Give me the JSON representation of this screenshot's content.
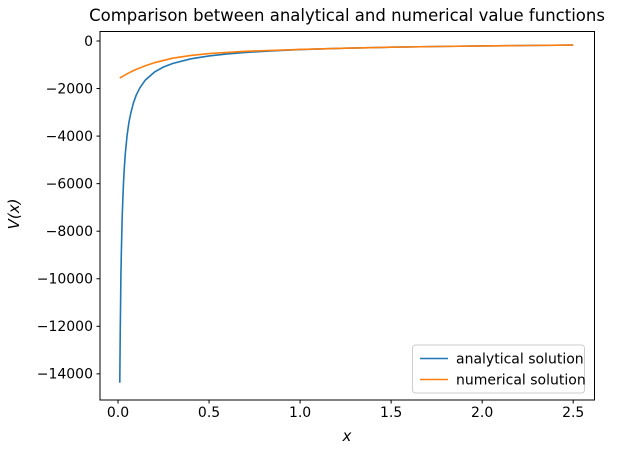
{
  "chart_data": {
    "type": "line",
    "title": "Comparison between analytical and numerical value functions",
    "xlabel": "x",
    "ylabel": "V(x)",
    "grid": false,
    "xlim": [
      -0.099,
      2.617
    ],
    "ylim": [
      -15099,
      399
    ],
    "xticks": [
      {
        "v": 0.0,
        "label": "0.0"
      },
      {
        "v": 0.5,
        "label": "0.5"
      },
      {
        "v": 1.0,
        "label": "1.0"
      },
      {
        "v": 1.5,
        "label": "1.5"
      },
      {
        "v": 2.0,
        "label": "2.0"
      },
      {
        "v": 2.5,
        "label": "2.5"
      }
    ],
    "yticks": [
      {
        "v": 0,
        "label": "0"
      },
      {
        "v": -2000,
        "label": "−2000"
      },
      {
        "v": -4000,
        "label": "−4000"
      },
      {
        "v": -6000,
        "label": "−6000"
      },
      {
        "v": -8000,
        "label": "−8000"
      },
      {
        "v": -10000,
        "label": "−10000"
      },
      {
        "v": -12000,
        "label": "−12000"
      },
      {
        "v": -14000,
        "label": "−14000"
      }
    ],
    "legend": {
      "position": "lower right",
      "border_color": "#cccccc"
    },
    "series": [
      {
        "name": "analytical solution",
        "color": "#1f77b4",
        "x": [
          0.01,
          0.011,
          0.012,
          0.014,
          0.016,
          0.018,
          0.02,
          0.023,
          0.026,
          0.03,
          0.035,
          0.04,
          0.05,
          0.06,
          0.07,
          0.085,
          0.1,
          0.12,
          0.15,
          0.2,
          0.25,
          0.3,
          0.4,
          0.5,
          0.6,
          0.7,
          0.85,
          1.0,
          1.25,
          1.5,
          1.75,
          2.0,
          2.25,
          2.5
        ],
        "y": [
          -14372,
          -13321,
          -12422,
          -10985,
          -9866,
          -8982,
          -8255,
          -7379,
          -6692,
          -5966,
          -5276,
          -4741,
          -3966,
          -3427,
          -3034,
          -2594,
          -2278,
          -1968,
          -1644,
          -1308,
          -1095,
          -946,
          -751,
          -629,
          -543,
          -480,
          -411,
          -361,
          -302,
          -261,
          -231,
          -207,
          -189,
          -173
        ]
      },
      {
        "name": "numerical solution",
        "color": "#ff7f0e",
        "x": [
          0.01,
          0.02,
          0.03,
          0.05,
          0.07,
          0.1,
          0.15,
          0.2,
          0.3,
          0.4,
          0.5,
          0.7,
          1.0,
          1.25,
          1.5,
          1.75,
          2.0,
          2.25,
          2.5
        ],
        "y": [
          -1556,
          -1511,
          -1467,
          -1382,
          -1302,
          -1195,
          -1040,
          -912,
          -726,
          -607,
          -530,
          -432,
          -352,
          -305,
          -262,
          -232,
          -208,
          -190,
          -174
        ]
      }
    ]
  }
}
